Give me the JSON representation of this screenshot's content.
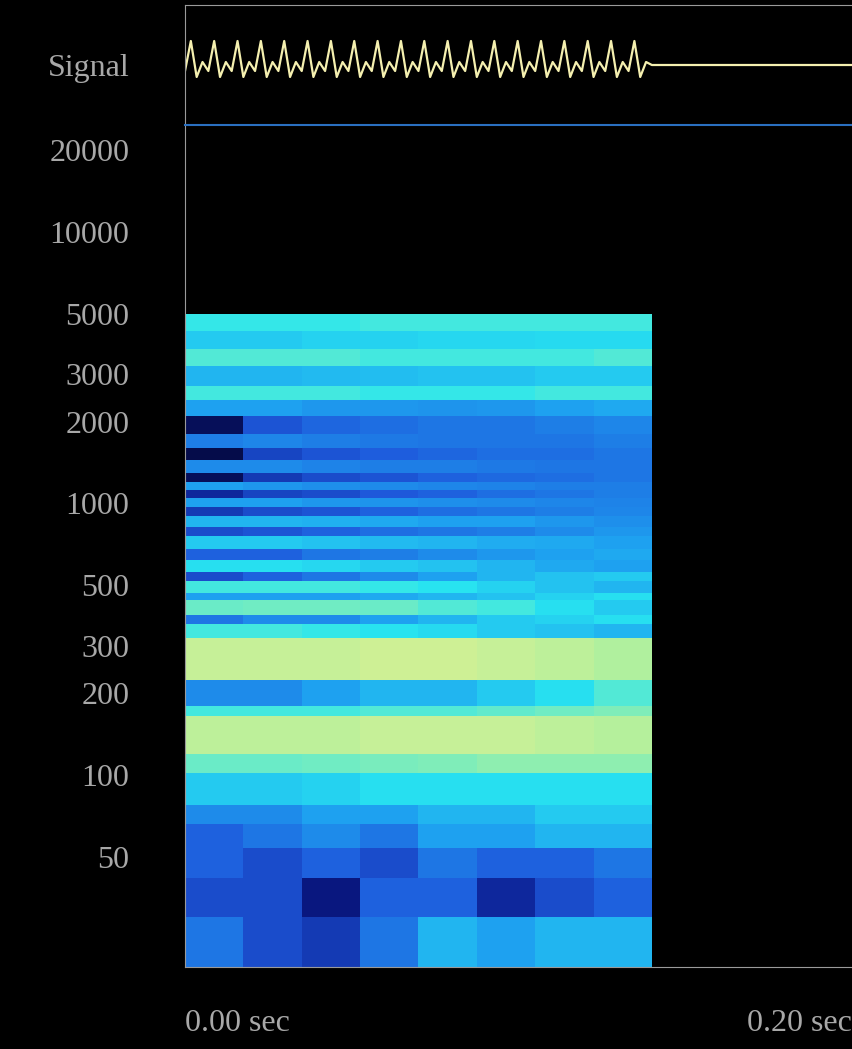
{
  "chart_data": [
    {
      "type": "line",
      "x": [
        0,
        0.00175,
        0.0035,
        0.00525,
        0.007,
        0.00875,
        0.0105,
        0.01225,
        0.014,
        0.01575,
        0.0175,
        0.01925,
        0.021,
        0.02275,
        0.0245,
        0.02625,
        0.028,
        0.02975,
        0.0315,
        0.03325,
        0.035,
        0.03675,
        0.0385,
        0.04025,
        0.042,
        0.04375,
        0.0455,
        0.04725,
        0.049,
        0.05075,
        0.0525,
        0.05425,
        0.056,
        0.05775,
        0.0595,
        0.06125,
        0.063,
        0.06475,
        0.0665,
        0.06825,
        0.07,
        0.07175,
        0.0735,
        0.07525,
        0.077,
        0.07875,
        0.0805,
        0.08225,
        0.084,
        0.08575,
        0.0875,
        0.08925,
        0.091,
        0.09275,
        0.0945,
        0.09625,
        0.098,
        0.09975,
        0.1015,
        0.10325,
        0.105,
        0.10675,
        0.1085,
        0.11025,
        0.112,
        0.11375,
        0.1155,
        0.11725,
        0.119,
        0.12075,
        0.1225,
        0.12425,
        0.126,
        0.12775,
        0.1295,
        0.13125,
        0.133,
        0.13475,
        0.1365,
        0.13825,
        0.14,
        0.2
      ],
      "values": [
        -0.1,
        0.4,
        -0.2,
        0.05,
        -0.1,
        0.4,
        -0.2,
        0.05,
        -0.1,
        0.4,
        -0.2,
        0.05,
        -0.1,
        0.4,
        -0.2,
        0.05,
        -0.1,
        0.4,
        -0.2,
        0.05,
        -0.1,
        0.4,
        -0.2,
        0.05,
        -0.1,
        0.4,
        -0.2,
        0.05,
        -0.1,
        0.4,
        -0.2,
        0.05,
        -0.1,
        0.4,
        -0.2,
        0.05,
        -0.1,
        0.4,
        -0.2,
        0.05,
        -0.1,
        0.4,
        -0.2,
        0.05,
        -0.1,
        0.4,
        -0.2,
        0.05,
        -0.1,
        0.4,
        -0.2,
        0.05,
        -0.1,
        0.4,
        -0.2,
        0.05,
        -0.1,
        0.4,
        -0.2,
        0.05,
        -0.1,
        0.4,
        -0.2,
        0.05,
        -0.1,
        0.4,
        -0.2,
        0.05,
        -0.1,
        0.4,
        -0.2,
        0.05,
        -0.1,
        0.4,
        -0.2,
        0.05,
        -0.1,
        0.4,
        -0.2,
        0.05,
        0,
        0
      ],
      "color": "#f5f0b0",
      "xlim": [
        0,
        0.2
      ],
      "ylim": [
        -1,
        1
      ],
      "yticks": [
        {
          "value": 0,
          "label": "Signal"
        }
      ],
      "tick_labels": "y",
      "grid": false
    },
    {
      "type": "heatmap",
      "log": "y",
      "time_edges": [
        0,
        0.0175,
        0.035,
        0.0525,
        0.07,
        0.0875,
        0.105,
        0.1225,
        0.14
      ],
      "freq_edges": [
        19.7,
        30,
        42,
        54,
        66,
        78,
        102,
        120,
        165,
        180,
        225,
        320,
        360,
        390,
        440,
        470,
        520,
        560,
        620,
        680,
        760,
        820,
        900,
        970,
        1050,
        1120,
        1200,
        1300,
        1450,
        1600,
        1800,
        2100,
        2400,
        2700,
        3200,
        3700,
        4300,
        5000
      ],
      "cells": [
        [
          0.4,
          0.3,
          0.25,
          0.4,
          0.55,
          0.5,
          0.55,
          0.55
        ],
        [
          0.3,
          0.3,
          0.15,
          0.35,
          0.35,
          0.2,
          0.3,
          0.35
        ],
        [
          0.35,
          0.3,
          0.35,
          0.3,
          0.4,
          0.35,
          0.35,
          0.4
        ],
        [
          0.35,
          0.4,
          0.45,
          0.4,
          0.5,
          0.5,
          0.55,
          0.55
        ],
        [
          0.45,
          0.45,
          0.5,
          0.5,
          0.55,
          0.55,
          0.6,
          0.6
        ],
        [
          0.6,
          0.6,
          0.62,
          0.65,
          0.65,
          0.65,
          0.65,
          0.65
        ],
        [
          0.75,
          0.75,
          0.76,
          0.77,
          0.78,
          0.8,
          0.8,
          0.8
        ],
        [
          0.88,
          0.88,
          0.88,
          0.9,
          0.9,
          0.9,
          0.88,
          0.86
        ],
        [
          0.7,
          0.7,
          0.7,
          0.72,
          0.72,
          0.74,
          0.76,
          0.78
        ],
        [
          0.45,
          0.45,
          0.5,
          0.55,
          0.55,
          0.6,
          0.65,
          0.72
        ],
        [
          0.9,
          0.9,
          0.9,
          0.92,
          0.92,
          0.9,
          0.88,
          0.85
        ],
        [
          0.7,
          0.7,
          0.68,
          0.66,
          0.64,
          0.6,
          0.58,
          0.55
        ],
        [
          0.4,
          0.45,
          0.45,
          0.5,
          0.55,
          0.6,
          0.62,
          0.65
        ],
        [
          0.75,
          0.76,
          0.76,
          0.75,
          0.72,
          0.7,
          0.65,
          0.6
        ],
        [
          0.5,
          0.5,
          0.5,
          0.52,
          0.55,
          0.58,
          0.62,
          0.65
        ],
        [
          0.7,
          0.7,
          0.7,
          0.68,
          0.66,
          0.62,
          0.58,
          0.55
        ],
        [
          0.3,
          0.35,
          0.4,
          0.45,
          0.5,
          0.55,
          0.58,
          0.6
        ],
        [
          0.65,
          0.65,
          0.63,
          0.6,
          0.58,
          0.55,
          0.52,
          0.5
        ],
        [
          0.35,
          0.35,
          0.4,
          0.42,
          0.45,
          0.48,
          0.5,
          0.52
        ],
        [
          0.6,
          0.6,
          0.58,
          0.56,
          0.55,
          0.53,
          0.52,
          0.5
        ],
        [
          0.3,
          0.32,
          0.35,
          0.38,
          0.4,
          0.42,
          0.45,
          0.48
        ],
        [
          0.55,
          0.55,
          0.54,
          0.52,
          0.5,
          0.5,
          0.48,
          0.46
        ],
        [
          0.25,
          0.3,
          0.32,
          0.35,
          0.38,
          0.4,
          0.42,
          0.44
        ],
        [
          0.5,
          0.5,
          0.48,
          0.47,
          0.46,
          0.45,
          0.44,
          0.43
        ],
        [
          0.2,
          0.28,
          0.3,
          0.33,
          0.35,
          0.38,
          0.4,
          0.42
        ],
        [
          0.5,
          0.48,
          0.46,
          0.45,
          0.44,
          0.43,
          0.42,
          0.42
        ],
        [
          0.1,
          0.25,
          0.3,
          0.32,
          0.35,
          0.37,
          0.38,
          0.4
        ],
        [
          0.45,
          0.45,
          0.43,
          0.42,
          0.42,
          0.41,
          0.4,
          0.4
        ],
        [
          0.08,
          0.28,
          0.32,
          0.34,
          0.36,
          0.38,
          0.38,
          0.4
        ],
        [
          0.42,
          0.44,
          0.42,
          0.41,
          0.4,
          0.4,
          0.4,
          0.42
        ],
        [
          0.1,
          0.32,
          0.36,
          0.38,
          0.4,
          0.4,
          0.42,
          0.44
        ],
        [
          0.5,
          0.5,
          0.48,
          0.48,
          0.47,
          0.48,
          0.5,
          0.52
        ],
        [
          0.7,
          0.7,
          0.7,
          0.68,
          0.68,
          0.68,
          0.7,
          0.7
        ],
        [
          0.55,
          0.55,
          0.56,
          0.57,
          0.58,
          0.58,
          0.6,
          0.6
        ],
        [
          0.72,
          0.72,
          0.72,
          0.7,
          0.7,
          0.7,
          0.7,
          0.72
        ],
        [
          0.6,
          0.6,
          0.62,
          0.62,
          0.63,
          0.63,
          0.64,
          0.64
        ],
        [
          0.68,
          0.68,
          0.68,
          0.7,
          0.7,
          0.7,
          0.7,
          0.7
        ]
      ],
      "clim": [
        0,
        1
      ],
      "xlim": [
        0,
        0.2
      ],
      "xticks": [
        {
          "value": 0,
          "label": "0.00 sec"
        },
        {
          "value": 0.2,
          "label": "0.20 sec"
        }
      ],
      "ylim": [
        19.7,
        24700
      ],
      "yticks": [
        50,
        100,
        200,
        300,
        500,
        1000,
        2000,
        3000,
        5000,
        10000,
        20000
      ],
      "grid": false
    }
  ]
}
